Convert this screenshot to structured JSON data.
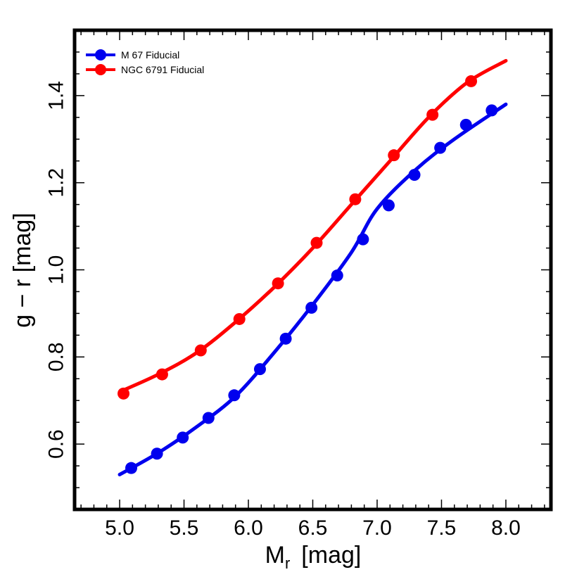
{
  "chart_data": {
    "type": "line",
    "xlabel": "M",
    "xlabel_sub": "r",
    "xlabel_unit": "[mag]",
    "ylabel": "g − r  [mag]",
    "xlim": [
      4.65,
      8.35
    ],
    "ylim": [
      0.45,
      1.55
    ],
    "x_ticks": [
      5.0,
      5.5,
      6.0,
      6.5,
      7.0,
      7.5,
      8.0
    ],
    "x_tick_labels": [
      "5.0",
      "5.5",
      "6.0",
      "6.5",
      "7.0",
      "7.5",
      "8.0"
    ],
    "y_ticks": [
      0.6,
      0.8,
      1.0,
      1.2,
      1.4
    ],
    "y_tick_labels": [
      "0.6",
      "0.8",
      "1.0",
      "1.2",
      "1.4"
    ],
    "legend_position": "top-left",
    "series": [
      {
        "name": "M 67 Fiducial",
        "color": "#0000ee",
        "line_x": [
          5.0,
          5.3,
          5.6,
          5.9,
          6.2,
          6.5,
          6.8,
          7.0,
          7.3,
          7.6,
          8.0
        ],
        "line_y": [
          0.53,
          0.58,
          0.64,
          0.71,
          0.81,
          0.92,
          1.04,
          1.14,
          1.23,
          1.3,
          1.38
        ],
        "markers_x": [
          5.09,
          5.29,
          5.49,
          5.69,
          5.89,
          6.09,
          6.29,
          6.49,
          6.69,
          6.89,
          7.09,
          7.29,
          7.49,
          7.69,
          7.89
        ],
        "markers_y": [
          0.545,
          0.578,
          0.615,
          0.66,
          0.712,
          0.772,
          0.842,
          0.913,
          0.987,
          1.07,
          1.148,
          1.218,
          1.28,
          1.333,
          1.366
        ]
      },
      {
        "name": "NGC 6791 Fiducial",
        "color": "#ff0000",
        "line_x": [
          5.0,
          5.3,
          5.6,
          5.9,
          6.2,
          6.5,
          6.8,
          7.1,
          7.4,
          7.7,
          8.0
        ],
        "line_y": [
          0.72,
          0.76,
          0.81,
          0.88,
          0.96,
          1.05,
          1.15,
          1.25,
          1.35,
          1.43,
          1.48
        ],
        "markers_x": [
          5.03,
          5.33,
          5.63,
          5.93,
          6.23,
          6.53,
          6.83,
          7.13,
          7.43,
          7.73
        ],
        "markers_y": [
          0.716,
          0.76,
          0.815,
          0.887,
          0.969,
          1.062,
          1.162,
          1.263,
          1.356,
          1.433
        ]
      }
    ]
  }
}
